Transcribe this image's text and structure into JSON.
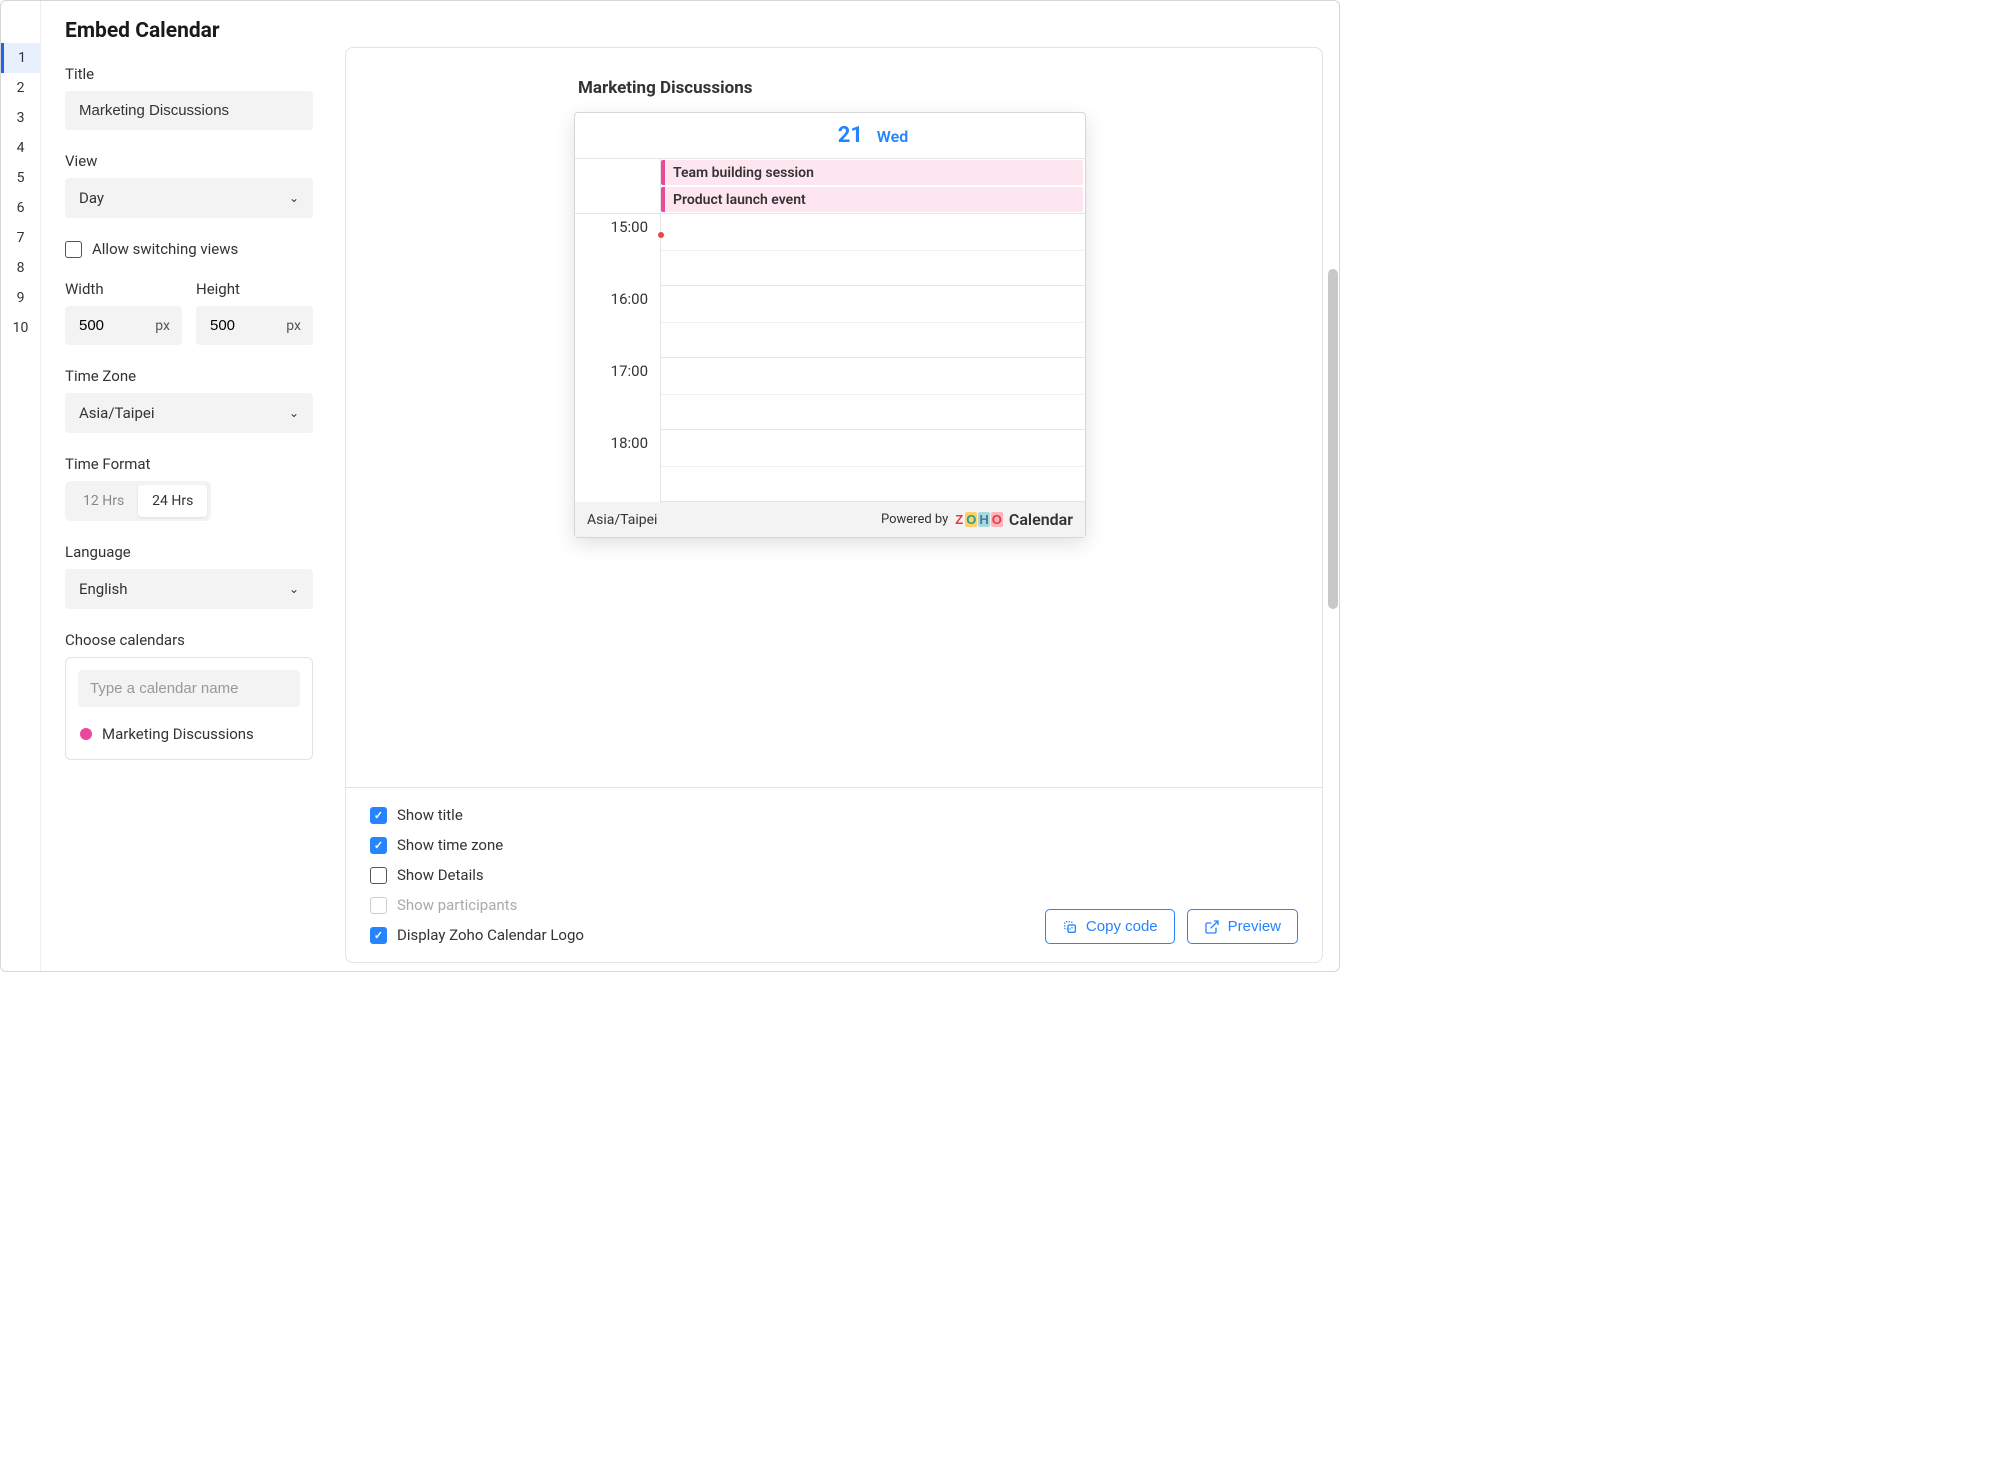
{
  "gutter": {
    "lines": [
      "1",
      "2",
      "3",
      "4",
      "5",
      "6",
      "7",
      "8",
      "9",
      "10"
    ],
    "active_index": 0
  },
  "header": {
    "title": "Embed Calendar"
  },
  "form": {
    "title_label": "Title",
    "title_value": "Marketing Discussions",
    "view_label": "View",
    "view_value": "Day",
    "allow_switching_label": "Allow switching views",
    "allow_switching_checked": false,
    "width_label": "Width",
    "width_value": "500",
    "width_unit": "px",
    "height_label": "Height",
    "height_value": "500",
    "height_unit": "px",
    "timezone_label": "Time Zone",
    "timezone_value": "Asia/Taipei",
    "timeformat_label": "Time Format",
    "timeformat_options": [
      "12 Hrs",
      "24 Hrs"
    ],
    "timeformat_selected_index": 1,
    "language_label": "Language",
    "language_value": "English",
    "choose_label": "Choose calendars",
    "search_placeholder": "Type a calendar name",
    "calendars": [
      {
        "name": "Marketing Discussions",
        "color": "#ec4899"
      }
    ]
  },
  "preview": {
    "title": "Marketing Discussions",
    "date_num": "21",
    "date_day": "Wed",
    "allday_events": [
      "Team building session",
      "Product launch event"
    ],
    "hours": [
      "15:00",
      "16:00",
      "17:00",
      "18:00"
    ],
    "footer_tz": "Asia/Taipei",
    "powered_by": "Powered by",
    "brand_name": "Calendar",
    "event_bg": "#fde6ef",
    "event_accent": "#ec4899",
    "now_color": "#ef4444",
    "date_color": "#2684ff"
  },
  "options": {
    "show_title": {
      "label": "Show title",
      "checked": true
    },
    "show_tz": {
      "label": "Show time zone",
      "checked": true
    },
    "show_details": {
      "label": "Show Details",
      "checked": false
    },
    "show_participants": {
      "label": "Show participants",
      "checked": false,
      "disabled": true
    },
    "show_logo": {
      "label": "Display Zoho Calendar Logo",
      "checked": true
    }
  },
  "actions": {
    "copy_code": "Copy code",
    "preview": "Preview"
  },
  "colors": {
    "primary": "#2684ff",
    "input_bg": "#f3f3f3",
    "border": "#e3e3e3"
  }
}
